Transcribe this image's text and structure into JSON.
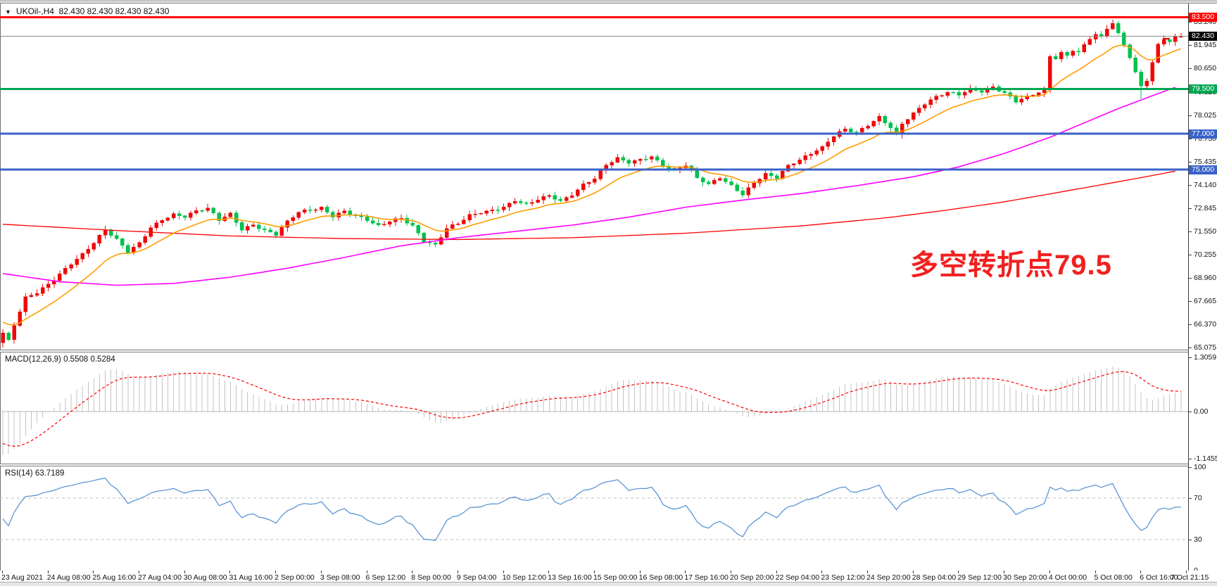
{
  "window": {
    "dropdown_icon": "▼",
    "title_symbol": "UKOil-,H4",
    "title_quotes": "82.430 82.430 82.430 82.430"
  },
  "colors": {
    "candle_up": "#ee0a0a",
    "candle_down": "#00c24e",
    "ma_fast": "#ff9d00",
    "ma_medium": "#ff00ff",
    "ma_slow": "#ff0000",
    "level_red": "#ff0000",
    "level_green": "#00a651",
    "level_blue": "#3a62c8",
    "current_price_line": "#8c8c8c",
    "current_price_badge": "#000000",
    "macd_histogram": "#c4c4c4",
    "macd_signal": "#ff0000",
    "rsi_line": "#4f8fd0",
    "rsi_levels_dash": "#bdbdbd",
    "annotation_red": "#f22020"
  },
  "annotation": {
    "text": "多空转折点79.5"
  },
  "price_axis": {
    "ticks": [
      {
        "label": "83.240",
        "price": 83.24
      },
      {
        "label": "81.945",
        "price": 81.945
      },
      {
        "label": "80.650",
        "price": 80.65
      },
      {
        "label": "79.320",
        "price": 79.32
      },
      {
        "label": "78.025",
        "price": 78.025
      },
      {
        "label": "76.730",
        "price": 76.73
      },
      {
        "label": "75.435",
        "price": 75.435
      },
      {
        "label": "74.140",
        "price": 74.14
      },
      {
        "label": "72.845",
        "price": 72.845
      },
      {
        "label": "71.550",
        "price": 71.55
      },
      {
        "label": "70.255",
        "price": 70.255
      },
      {
        "label": "68.960",
        "price": 68.96
      },
      {
        "label": "67.665",
        "price": 67.665
      },
      {
        "label": "66.370",
        "price": 66.37
      },
      {
        "label": "65.075",
        "price": 65.075
      }
    ],
    "badges": [
      {
        "label": "83.500",
        "price": 83.5,
        "color": "#ff0000"
      },
      {
        "label": "82.430",
        "price": 82.43,
        "color": "#000000"
      },
      {
        "label": "79.500",
        "price": 79.5,
        "color": "#00a651"
      },
      {
        "label": "77.000",
        "price": 77.0,
        "color": "#3a62c8"
      },
      {
        "label": "75.000",
        "price": 75.0,
        "color": "#3a62c8"
      }
    ]
  },
  "time_axis": {
    "labels": [
      {
        "text": "23 Aug 2021",
        "bar": 0
      },
      {
        "text": "24 Aug 08:00",
        "bar": 8
      },
      {
        "text": "25 Aug 16:00",
        "bar": 16
      },
      {
        "text": "27 Aug 04:00",
        "bar": 24
      },
      {
        "text": "30 Aug 08:00",
        "bar": 32
      },
      {
        "text": "31 Aug 16:00",
        "bar": 40
      },
      {
        "text": "2 Sep 00:00",
        "bar": 48
      },
      {
        "text": "3 Sep 08:00",
        "bar": 56
      },
      {
        "text": "6 Sep 12:00",
        "bar": 64
      },
      {
        "text": "8 Sep 00:00",
        "bar": 72
      },
      {
        "text": "9 Sep 04:00",
        "bar": 80
      },
      {
        "text": "10 Sep 12:00",
        "bar": 88
      },
      {
        "text": "13 Sep 16:00",
        "bar": 96
      },
      {
        "text": "15 Sep 00:00",
        "bar": 104
      },
      {
        "text": "16 Sep 08:00",
        "bar": 112
      },
      {
        "text": "17 Sep 16:00",
        "bar": 120
      },
      {
        "text": "20 Sep 20:00",
        "bar": 128
      },
      {
        "text": "22 Sep 04:00",
        "bar": 136
      },
      {
        "text": "23 Sep 12:00",
        "bar": 144
      },
      {
        "text": "24 Sep 20:00",
        "bar": 152
      },
      {
        "text": "28 Sep 04:00",
        "bar": 160
      },
      {
        "text": "29 Sep 12:00",
        "bar": 168
      },
      {
        "text": "30 Sep 20:00",
        "bar": 176
      },
      {
        "text": "4 Oct 00:00",
        "bar": 184
      },
      {
        "text": "5 Oct 08:00",
        "bar": 192
      },
      {
        "text": "6 Oct 16:00",
        "bar": 200
      },
      {
        "text": "7 Oct 21:15",
        "bar": 208
      }
    ]
  },
  "indicators": {
    "macd": {
      "label": "MACD(12,26,9) 0.5508 0.5284",
      "fast": 12,
      "slow": 26,
      "signal": 9,
      "seed_ema_fast": 66.2,
      "seed_ema_slow": 67.3,
      "seed_signal": -0.7,
      "scale_ticks": [
        {
          "label": "1.3059",
          "value": 1.3059
        },
        {
          "label": "0.00",
          "value": 0.0
        },
        {
          "label": "-1.1455",
          "value": -1.1455
        }
      ]
    },
    "rsi": {
      "label": "RSI(14) 63.7189",
      "period": 14,
      "seed_gain": 0.1,
      "seed_loss": 0.1,
      "levels": [
        70,
        30
      ],
      "scale_ticks": [
        {
          "label": "100",
          "value": 100
        },
        {
          "label": "70",
          "value": 70
        },
        {
          "label": "30",
          "value": 30
        },
        {
          "label": "0",
          "value": 0
        }
      ]
    }
  },
  "chart_data": {
    "type": "candlestick",
    "symbol": "UKOil-",
    "timeframe": "H4",
    "current_price": 82.43,
    "ylim": [
      64.95,
      84.25
    ],
    "bar_count": 208,
    "first_open": 65.35,
    "hlines": [
      {
        "price": 83.5,
        "color": "#ff0000",
        "width": 3
      },
      {
        "price": 79.5,
        "color": "#00a651",
        "width": 3
      },
      {
        "price": 77.0,
        "color": "#3a62c8",
        "width": 3
      },
      {
        "price": 75.0,
        "color": "#3a62c8",
        "width": 3
      }
    ],
    "current_price_level": {
      "price": 82.43,
      "color": "#8c8c8c",
      "width": 1
    },
    "close_anchors": [
      [
        0,
        65.9
      ],
      [
        1,
        65.45
      ],
      [
        2,
        66.3
      ],
      [
        4,
        67.8
      ],
      [
        6,
        68.1
      ],
      [
        8,
        68.6
      ],
      [
        10,
        69.2
      ],
      [
        12,
        69.8
      ],
      [
        14,
        70.3
      ],
      [
        16,
        70.9
      ],
      [
        18,
        71.6
      ],
      [
        20,
        71.05
      ],
      [
        22,
        70.4
      ],
      [
        24,
        70.9
      ],
      [
        26,
        71.8
      ],
      [
        28,
        72.25
      ],
      [
        30,
        72.5
      ],
      [
        32,
        72.35
      ],
      [
        34,
        72.65
      ],
      [
        36,
        72.8
      ],
      [
        38,
        72.2
      ],
      [
        40,
        72.55
      ],
      [
        42,
        71.7
      ],
      [
        44,
        71.95
      ],
      [
        46,
        71.6
      ],
      [
        48,
        71.35
      ],
      [
        50,
        72.05
      ],
      [
        52,
        72.6
      ],
      [
        54,
        72.75
      ],
      [
        56,
        72.9
      ],
      [
        58,
        72.45
      ],
      [
        60,
        72.7
      ],
      [
        62,
        72.4
      ],
      [
        64,
        72.15
      ],
      [
        66,
        71.8
      ],
      [
        68,
        72.1
      ],
      [
        70,
        72.3
      ],
      [
        72,
        71.9
      ],
      [
        74,
        71.05
      ],
      [
        76,
        70.8
      ],
      [
        78,
        71.7
      ],
      [
        80,
        71.95
      ],
      [
        82,
        72.4
      ],
      [
        84,
        72.6
      ],
      [
        86,
        72.75
      ],
      [
        88,
        72.95
      ],
      [
        90,
        73.3
      ],
      [
        92,
        73.05
      ],
      [
        94,
        73.3
      ],
      [
        96,
        73.5
      ],
      [
        98,
        73.2
      ],
      [
        100,
        73.6
      ],
      [
        102,
        74.2
      ],
      [
        104,
        74.55
      ],
      [
        106,
        75.3
      ],
      [
        108,
        75.6
      ],
      [
        110,
        75.35
      ],
      [
        112,
        75.5
      ],
      [
        114,
        75.7
      ],
      [
        116,
        75.25
      ],
      [
        118,
        75.0
      ],
      [
        120,
        75.3
      ],
      [
        122,
        74.55
      ],
      [
        124,
        74.15
      ],
      [
        126,
        74.5
      ],
      [
        128,
        74.05
      ],
      [
        130,
        73.6
      ],
      [
        132,
        74.3
      ],
      [
        134,
        74.8
      ],
      [
        136,
        74.6
      ],
      [
        138,
        75.2
      ],
      [
        140,
        75.5
      ],
      [
        142,
        75.85
      ],
      [
        144,
        76.2
      ],
      [
        146,
        76.9
      ],
      [
        148,
        77.3
      ],
      [
        150,
        77.1
      ],
      [
        152,
        77.5
      ],
      [
        154,
        77.9
      ],
      [
        156,
        77.3
      ],
      [
        157,
        76.85
      ],
      [
        158,
        77.5
      ],
      [
        160,
        78.1
      ],
      [
        162,
        78.7
      ],
      [
        164,
        79.1
      ],
      [
        166,
        79.35
      ],
      [
        168,
        79.2
      ],
      [
        170,
        79.45
      ],
      [
        172,
        79.3
      ],
      [
        174,
        79.55
      ],
      [
        176,
        79.25
      ],
      [
        178,
        78.85
      ],
      [
        180,
        79.1
      ],
      [
        182,
        79.35
      ],
      [
        183,
        79.45
      ],
      [
        184,
        81.3
      ],
      [
        185,
        81.2
      ],
      [
        186,
        81.45
      ],
      [
        187,
        81.3
      ],
      [
        188,
        81.6
      ],
      [
        189,
        81.5
      ],
      [
        190,
        81.9
      ],
      [
        191,
        82.3
      ],
      [
        192,
        82.55
      ],
      [
        193,
        82.4
      ],
      [
        194,
        82.9
      ],
      [
        195,
        83.15
      ],
      [
        196,
        82.6
      ],
      [
        197,
        82.0
      ],
      [
        198,
        81.3
      ],
      [
        199,
        80.4
      ],
      [
        200,
        79.65
      ],
      [
        201,
        79.95
      ],
      [
        202,
        80.9
      ],
      [
        203,
        81.9
      ],
      [
        204,
        82.25
      ],
      [
        205,
        82.1
      ],
      [
        206,
        82.35
      ],
      [
        207,
        82.43
      ]
    ],
    "special_points": {
      "first_low": 65.08,
      "peak_bar": 195,
      "peak_high": 83.35,
      "capitulation_bar": 200,
      "capitulation_low": 78.95,
      "last_close": 82.43
    },
    "overlays": [
      {
        "name": "ma-fast",
        "color": "#ff9d00",
        "type": "ema",
        "period": 13,
        "seed": 66.6
      },
      {
        "name": "ma-medium",
        "color": "#ff00ff",
        "type": "anchors",
        "anchors": [
          [
            0,
            69.2
          ],
          [
            10,
            68.75
          ],
          [
            20,
            68.55
          ],
          [
            30,
            68.65
          ],
          [
            40,
            69.0
          ],
          [
            50,
            69.5
          ],
          [
            60,
            70.1
          ],
          [
            70,
            70.75
          ],
          [
            80,
            71.2
          ],
          [
            90,
            71.55
          ],
          [
            100,
            71.9
          ],
          [
            110,
            72.35
          ],
          [
            120,
            72.9
          ],
          [
            130,
            73.3
          ],
          [
            140,
            73.65
          ],
          [
            150,
            74.1
          ],
          [
            160,
            74.6
          ],
          [
            168,
            75.15
          ],
          [
            176,
            75.9
          ],
          [
            184,
            76.8
          ],
          [
            190,
            77.6
          ],
          [
            196,
            78.4
          ],
          [
            201,
            79.0
          ],
          [
            204,
            79.35
          ],
          [
            207,
            79.7
          ]
        ]
      },
      {
        "name": "ma-slow",
        "color": "#ff0000",
        "type": "anchors",
        "anchors": [
          [
            0,
            71.95
          ],
          [
            20,
            71.6
          ],
          [
            40,
            71.3
          ],
          [
            60,
            71.15
          ],
          [
            80,
            71.1
          ],
          [
            100,
            71.2
          ],
          [
            120,
            71.45
          ],
          [
            140,
            71.85
          ],
          [
            155,
            72.3
          ],
          [
            165,
            72.7
          ],
          [
            175,
            73.15
          ],
          [
            185,
            73.7
          ],
          [
            193,
            74.15
          ],
          [
            200,
            74.55
          ],
          [
            207,
            74.97
          ]
        ]
      }
    ]
  }
}
